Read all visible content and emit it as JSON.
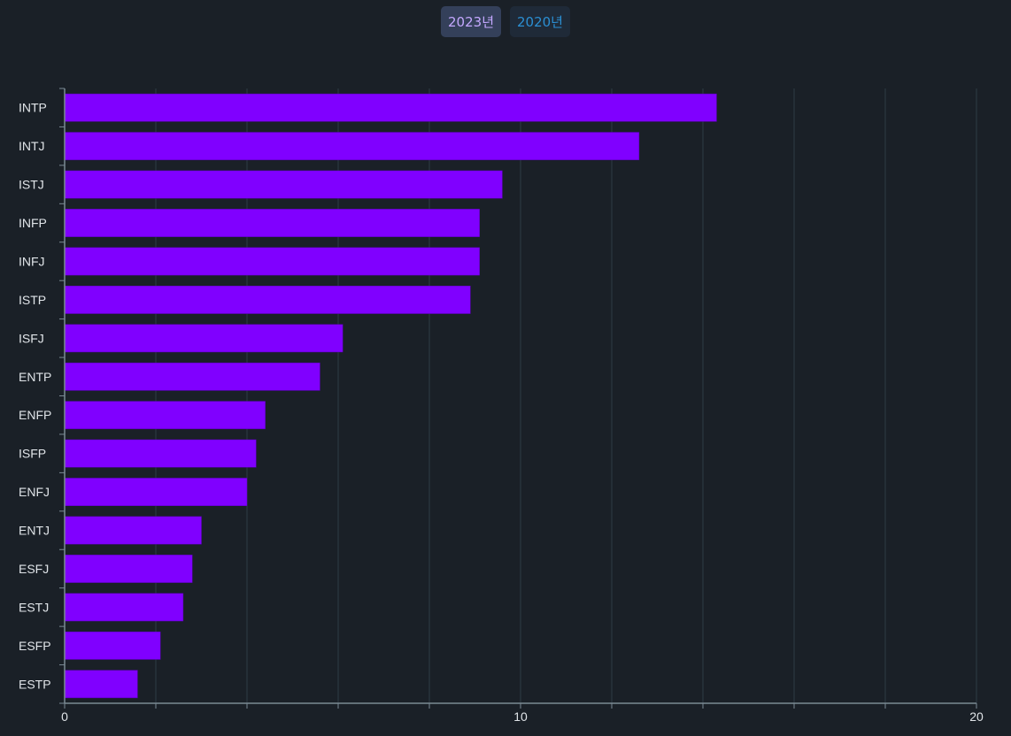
{
  "tabs": [
    {
      "label": "2023년",
      "active": true
    },
    {
      "label": "2020년",
      "active": false
    }
  ],
  "colors": {
    "background": "#1a2027",
    "bar": "#8000ff",
    "grid": "#2e3b45",
    "axis": "#7b8a94",
    "text": "#e0e4e8"
  },
  "chart_data": {
    "type": "bar",
    "orientation": "horizontal",
    "categories": [
      "INTP",
      "INTJ",
      "ISTJ",
      "INFP",
      "INFJ",
      "ISTP",
      "ISFJ",
      "ENTP",
      "ENFP",
      "ISFP",
      "ENFJ",
      "ENTJ",
      "ESFJ",
      "ESTJ",
      "ESFP",
      "ESTP"
    ],
    "values": [
      14.3,
      12.6,
      9.6,
      9.1,
      9.1,
      8.9,
      6.1,
      5.6,
      4.4,
      4.2,
      4.0,
      3.0,
      2.8,
      2.6,
      2.1,
      1.6
    ],
    "xlim": [
      0,
      20
    ],
    "x_ticks": [
      0,
      10,
      20
    ],
    "grid_step": 2,
    "grid": true,
    "title": "",
    "xlabel": "",
    "ylabel": ""
  }
}
